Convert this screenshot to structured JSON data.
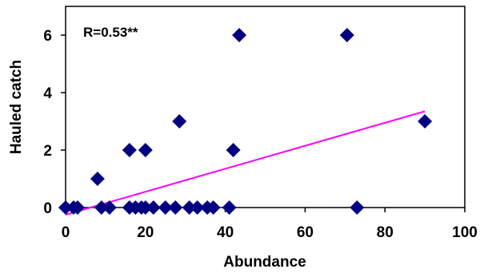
{
  "chart_data": {
    "type": "scatter",
    "xlabel": "Abundance",
    "ylabel": "Hauled catch",
    "annotation": "R=0.53**",
    "xlim": [
      0,
      100
    ],
    "ylim": [
      0,
      7
    ],
    "x_ticks": [
      "0",
      "20",
      "40",
      "60",
      "80",
      "100"
    ],
    "y_ticks": [
      "0",
      "2",
      "4",
      "6"
    ],
    "grid": false,
    "legend": "none",
    "marker_color": "#000080",
    "trend_color": "#ff00ff",
    "points": [
      {
        "x": 0,
        "y": 0
      },
      {
        "x": 2,
        "y": 0
      },
      {
        "x": 3,
        "y": 0
      },
      {
        "x": 8,
        "y": 1
      },
      {
        "x": 9,
        "y": 0
      },
      {
        "x": 11,
        "y": 0
      },
      {
        "x": 16,
        "y": 0
      },
      {
        "x": 16,
        "y": 2
      },
      {
        "x": 17.5,
        "y": 0
      },
      {
        "x": 19,
        "y": 0
      },
      {
        "x": 20,
        "y": 2
      },
      {
        "x": 20,
        "y": 0
      },
      {
        "x": 22,
        "y": 0
      },
      {
        "x": 25,
        "y": 0
      },
      {
        "x": 27.5,
        "y": 0
      },
      {
        "x": 28.5,
        "y": 3
      },
      {
        "x": 31,
        "y": 0
      },
      {
        "x": 33,
        "y": 0
      },
      {
        "x": 35.5,
        "y": 0
      },
      {
        "x": 37,
        "y": 0
      },
      {
        "x": 41,
        "y": 0
      },
      {
        "x": 42,
        "y": 2
      },
      {
        "x": 43.5,
        "y": 6
      },
      {
        "x": 70.5,
        "y": 6
      },
      {
        "x": 73,
        "y": 0
      },
      {
        "x": 90,
        "y": 3
      }
    ],
    "trendline": {
      "x": [
        0,
        90
      ],
      "y": [
        -0.25,
        3.35
      ]
    }
  }
}
